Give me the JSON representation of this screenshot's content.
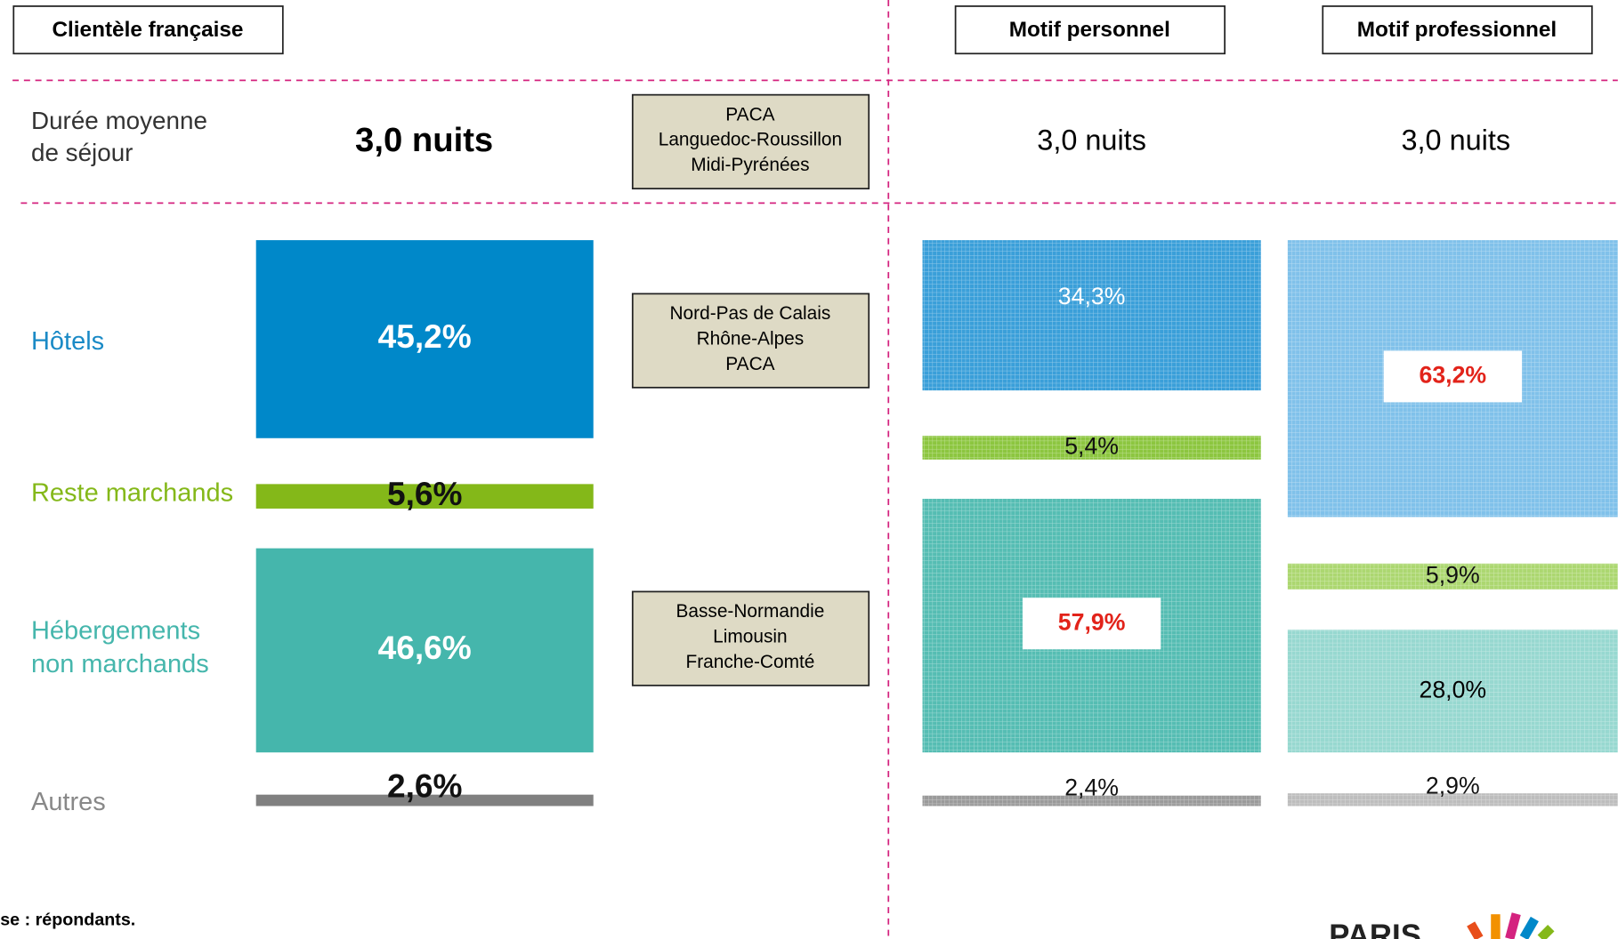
{
  "header": {
    "title": "Clientèle française",
    "columns": [
      "Motif personnel",
      "Motif professionnel"
    ]
  },
  "duration": {
    "label": "Durée moyenne de séjour",
    "values": [
      "3,0 nuits",
      "3,0 nuits",
      "3,0 nuits"
    ]
  },
  "regions": [
    [
      "PACA",
      "Languedoc-Roussillon",
      "Midi-Pyrénées"
    ],
    [
      "Nord-Pas de Calais",
      "Rhône-Alpes",
      "PACA"
    ],
    [
      "Basse-Normandie",
      "Limousin",
      "Franche-Comté"
    ]
  ],
  "chart_data": {
    "type": "bar",
    "categories": [
      "Hôtels",
      "Reste marchands",
      "Hébergements non marchands",
      "Autres"
    ],
    "category_colors": [
      "#1a8ac6",
      "#84b819",
      "#45b6ac",
      "#888888"
    ],
    "series": [
      {
        "name": "Clientèle française",
        "colors": [
          "#0088c9",
          "#84b819",
          "#45b6ac",
          "#808080"
        ],
        "pattern": false,
        "text_color": "#ffffff",
        "highlight": [],
        "values": [
          45.2,
          5.6,
          46.6,
          2.6
        ],
        "value_labels": [
          "45,2%",
          "5,6%",
          "46,6%",
          "2,6%"
        ]
      },
      {
        "name": "Motif personnel",
        "colors": [
          "#3a9fd9",
          "#8cc63f",
          "#55bdb3",
          "#9a9a9a"
        ],
        "pattern": true,
        "text_color": "#ffffff",
        "highlight": [
          2
        ],
        "values": [
          34.3,
          5.4,
          57.9,
          2.4
        ],
        "value_labels": [
          "34,3%",
          "5,4%",
          "57,9%",
          "2,4%"
        ]
      },
      {
        "name": "Motif professionnel",
        "colors": [
          "#80c1ea",
          "#acd770",
          "#97d8d0",
          "#bdbdbd"
        ],
        "pattern": true,
        "text_color": "#000000",
        "highlight": [
          0
        ],
        "values": [
          63.2,
          5.9,
          28.0,
          2.9
        ],
        "value_labels": [
          "63,2%",
          "5,9%",
          "28,0%",
          "2,9%"
        ]
      }
    ]
  },
  "footer": {
    "note": "se : répondants.",
    "logo": "PARIS"
  }
}
